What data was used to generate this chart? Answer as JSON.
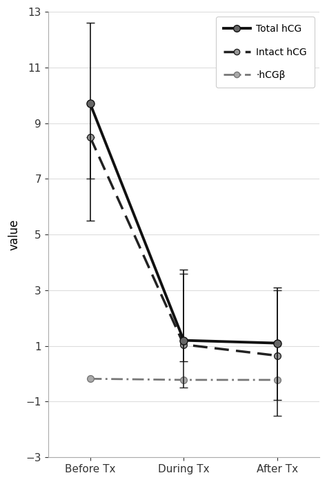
{
  "x_labels": [
    "Before Tx",
    "During Tx",
    "After Tx"
  ],
  "x_positions": [
    0,
    1,
    2
  ],
  "total_hcg": {
    "y": [
      9.7,
      1.2,
      1.1
    ],
    "error_low": [
      4.2,
      0.75,
      2.05
    ],
    "error_high": [
      2.9,
      2.55,
      2.0
    ],
    "color": "#111111",
    "marker_color": "#666666",
    "linewidth": 2.8,
    "linestyle": "-",
    "marker": "o",
    "markersize": 8,
    "label": "Total hCG"
  },
  "intact_hcg": {
    "y": [
      8.5,
      1.05,
      0.65
    ],
    "error_low": [
      1.5,
      1.55,
      2.15
    ],
    "error_high": [
      0.0,
      2.55,
      2.35
    ],
    "color": "#222222",
    "marker_color": "#999999",
    "linewidth": 2.5,
    "linestyle": "--",
    "marker": "o",
    "markersize": 7,
    "label": "Intact hCG"
  },
  "hcgb": {
    "y": [
      -0.18,
      -0.22,
      -0.22
    ],
    "color": "#777777",
    "marker_color": "#aaaaaa",
    "linewidth": 2.0,
    "linestyle": "-.",
    "marker": "o",
    "markersize": 7,
    "label": "·hCGβ"
  },
  "ylim": [
    -3,
    13
  ],
  "yticks": [
    -3,
    -1,
    1,
    3,
    5,
    7,
    9,
    11,
    13
  ],
  "ylabel": "value",
  "background_color": "#ffffff",
  "grid_color": "#dddddd",
  "legend_box_color": "#cccccc"
}
